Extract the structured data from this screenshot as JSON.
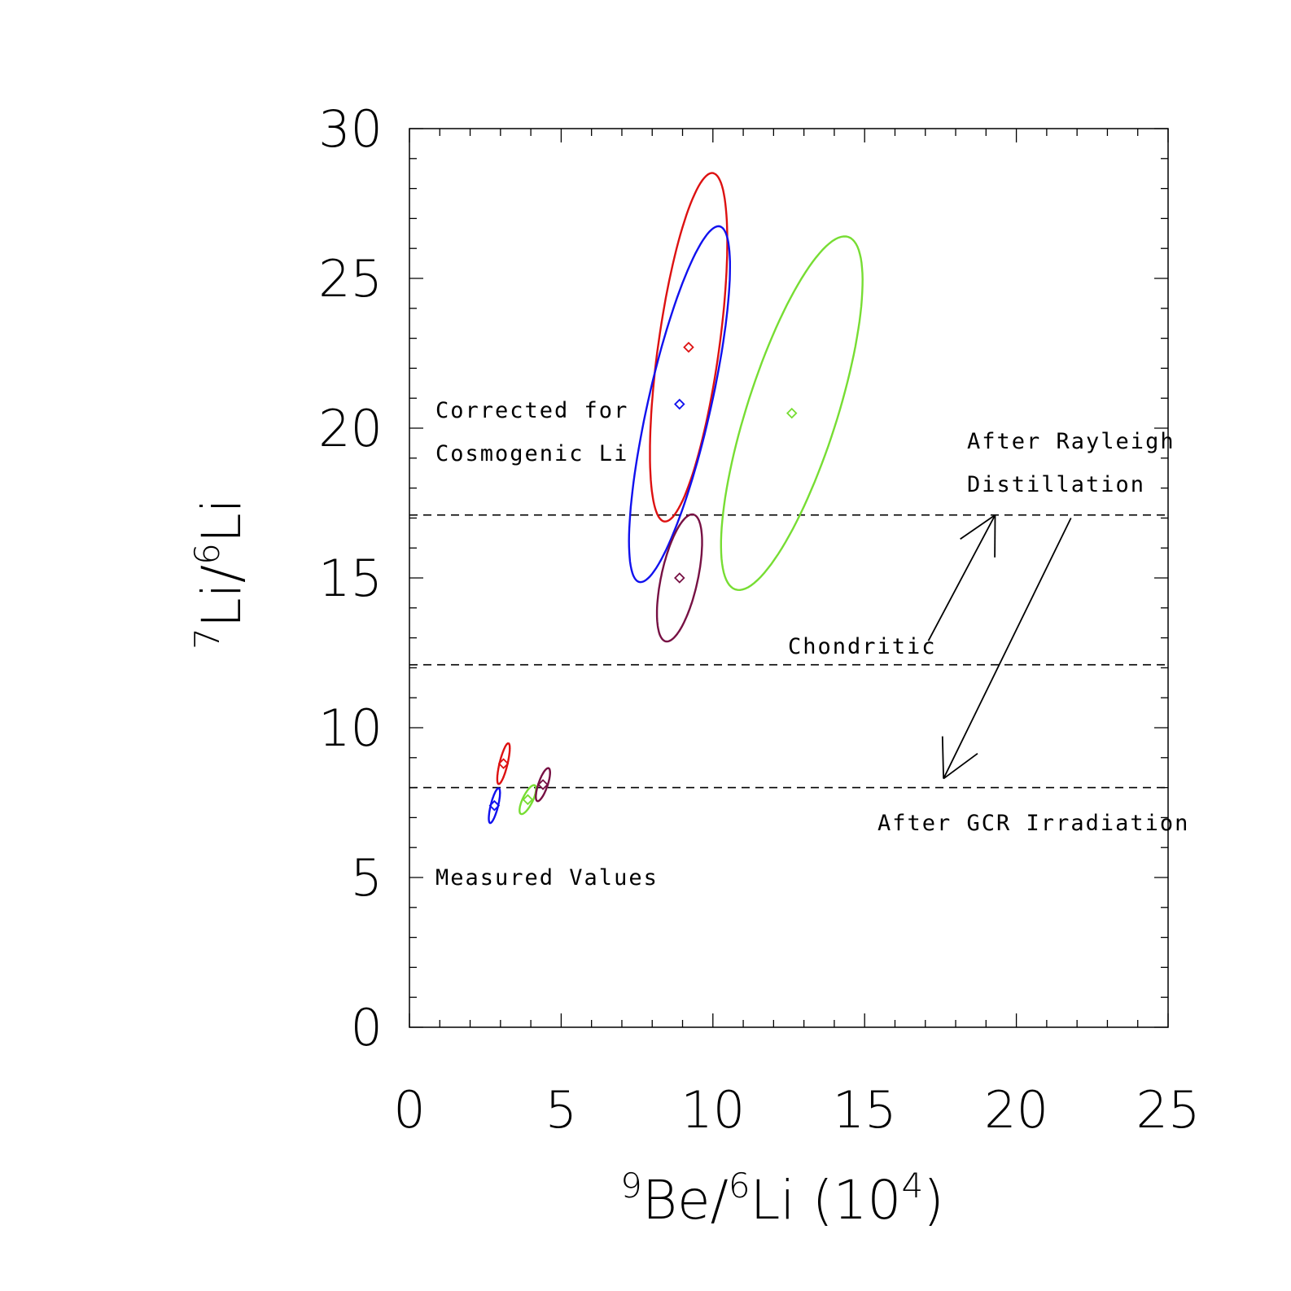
{
  "chart_data": {
    "type": "scatter",
    "xlabel": {
      "sup1": "9",
      "part1": "Be/",
      "sup2": "6",
      "part2": "Li (10",
      "sup3": "4",
      "part3": ")"
    },
    "ylabel": {
      "sup1": "7",
      "part1": "Li/",
      "sup2": "6",
      "part2": "Li"
    },
    "xlim": [
      0,
      25
    ],
    "ylim": [
      0,
      30
    ],
    "xticks": [
      "0",
      "5",
      "10",
      "15",
      "20",
      "25"
    ],
    "yticks": [
      "0",
      "5",
      "10",
      "15",
      "20",
      "25",
      "30"
    ],
    "grid": false,
    "reference_lines": [
      {
        "label": "After Rayleigh Distillation",
        "y": 17.1
      },
      {
        "label": "Chondritic",
        "y": 12.1
      },
      {
        "label": "After GCR Irradiation",
        "y": 8.0
      }
    ],
    "annotations": {
      "corrected_line1": "Corrected for",
      "corrected_line2": "Cosmogenic Li",
      "measured": "Measured Values",
      "rayleigh_line1": "After Rayleigh",
      "rayleigh_line2": "Distillation",
      "chondritic": "Chondritic",
      "gcr": "After GCR Irradiation"
    },
    "colors": {
      "red": "#dd1111",
      "blue": "#1111ee",
      "green": "#77dd33",
      "purple": "#771144",
      "black": "#000000"
    },
    "series": [
      {
        "color": "#dd1111",
        "measured": {
          "x": 3.1,
          "y": 8.8
        },
        "corrected": {
          "x": 9.2,
          "y": 22.7
        }
      },
      {
        "color": "#1111ee",
        "measured": {
          "x": 2.8,
          "y": 7.4
        },
        "corrected": {
          "x": 8.9,
          "y": 20.8
        }
      },
      {
        "color": "#77dd33",
        "measured": {
          "x": 3.9,
          "y": 7.6
        },
        "corrected": {
          "x": 12.6,
          "y": 20.5
        }
      },
      {
        "color": "#771144",
        "measured": {
          "x": 4.4,
          "y": 8.1
        },
        "corrected": {
          "x": 8.9,
          "y": 15.0
        }
      }
    ],
    "ellipses": [
      {
        "color": "#dd1111",
        "center": [
          9.2,
          22.7
        ],
        "half_major": [
          0.85,
          5.8
        ],
        "half_minor": [
          0.95,
          -0.45
        ]
      },
      {
        "color": "#1111ee",
        "center": [
          8.9,
          20.8
        ],
        "half_major": [
          1.4,
          5.9
        ],
        "half_minor": [
          0.9,
          -0.7
        ]
      },
      {
        "color": "#77dd33",
        "center": [
          12.6,
          20.5
        ],
        "half_major": [
          2.0,
          5.8
        ],
        "half_minor": [
          1.2,
          -1.1
        ]
      },
      {
        "color": "#771144",
        "center": [
          8.9,
          15.0
        ],
        "half_major": [
          0.5,
          2.1
        ],
        "half_minor": [
          0.55,
          -0.3
        ]
      },
      {
        "color": "#dd1111",
        "center": [
          3.1,
          8.8
        ],
        "half_major": [
          0.16,
          0.68
        ],
        "half_minor": [
          0.13,
          -0.02
        ]
      },
      {
        "color": "#1111ee",
        "center": [
          2.8,
          7.4
        ],
        "half_major": [
          0.14,
          0.58
        ],
        "half_minor": [
          0.12,
          -0.02
        ]
      },
      {
        "color": "#77dd33",
        "center": [
          3.9,
          7.6
        ],
        "half_major": [
          0.22,
          0.48
        ],
        "half_minor": [
          0.16,
          -0.05
        ]
      },
      {
        "color": "#771144",
        "center": [
          4.4,
          8.1
        ],
        "half_major": [
          0.18,
          0.55
        ],
        "half_minor": [
          0.15,
          -0.03
        ]
      }
    ],
    "arrows": [
      {
        "name": "arrow-to-rayleigh",
        "from": [
          17.1,
          12.9
        ],
        "to": [
          19.3,
          17.1
        ]
      },
      {
        "name": "arrow-to-gcr",
        "from": [
          21.8,
          17.0
        ],
        "to": [
          17.6,
          8.3
        ]
      }
    ]
  }
}
